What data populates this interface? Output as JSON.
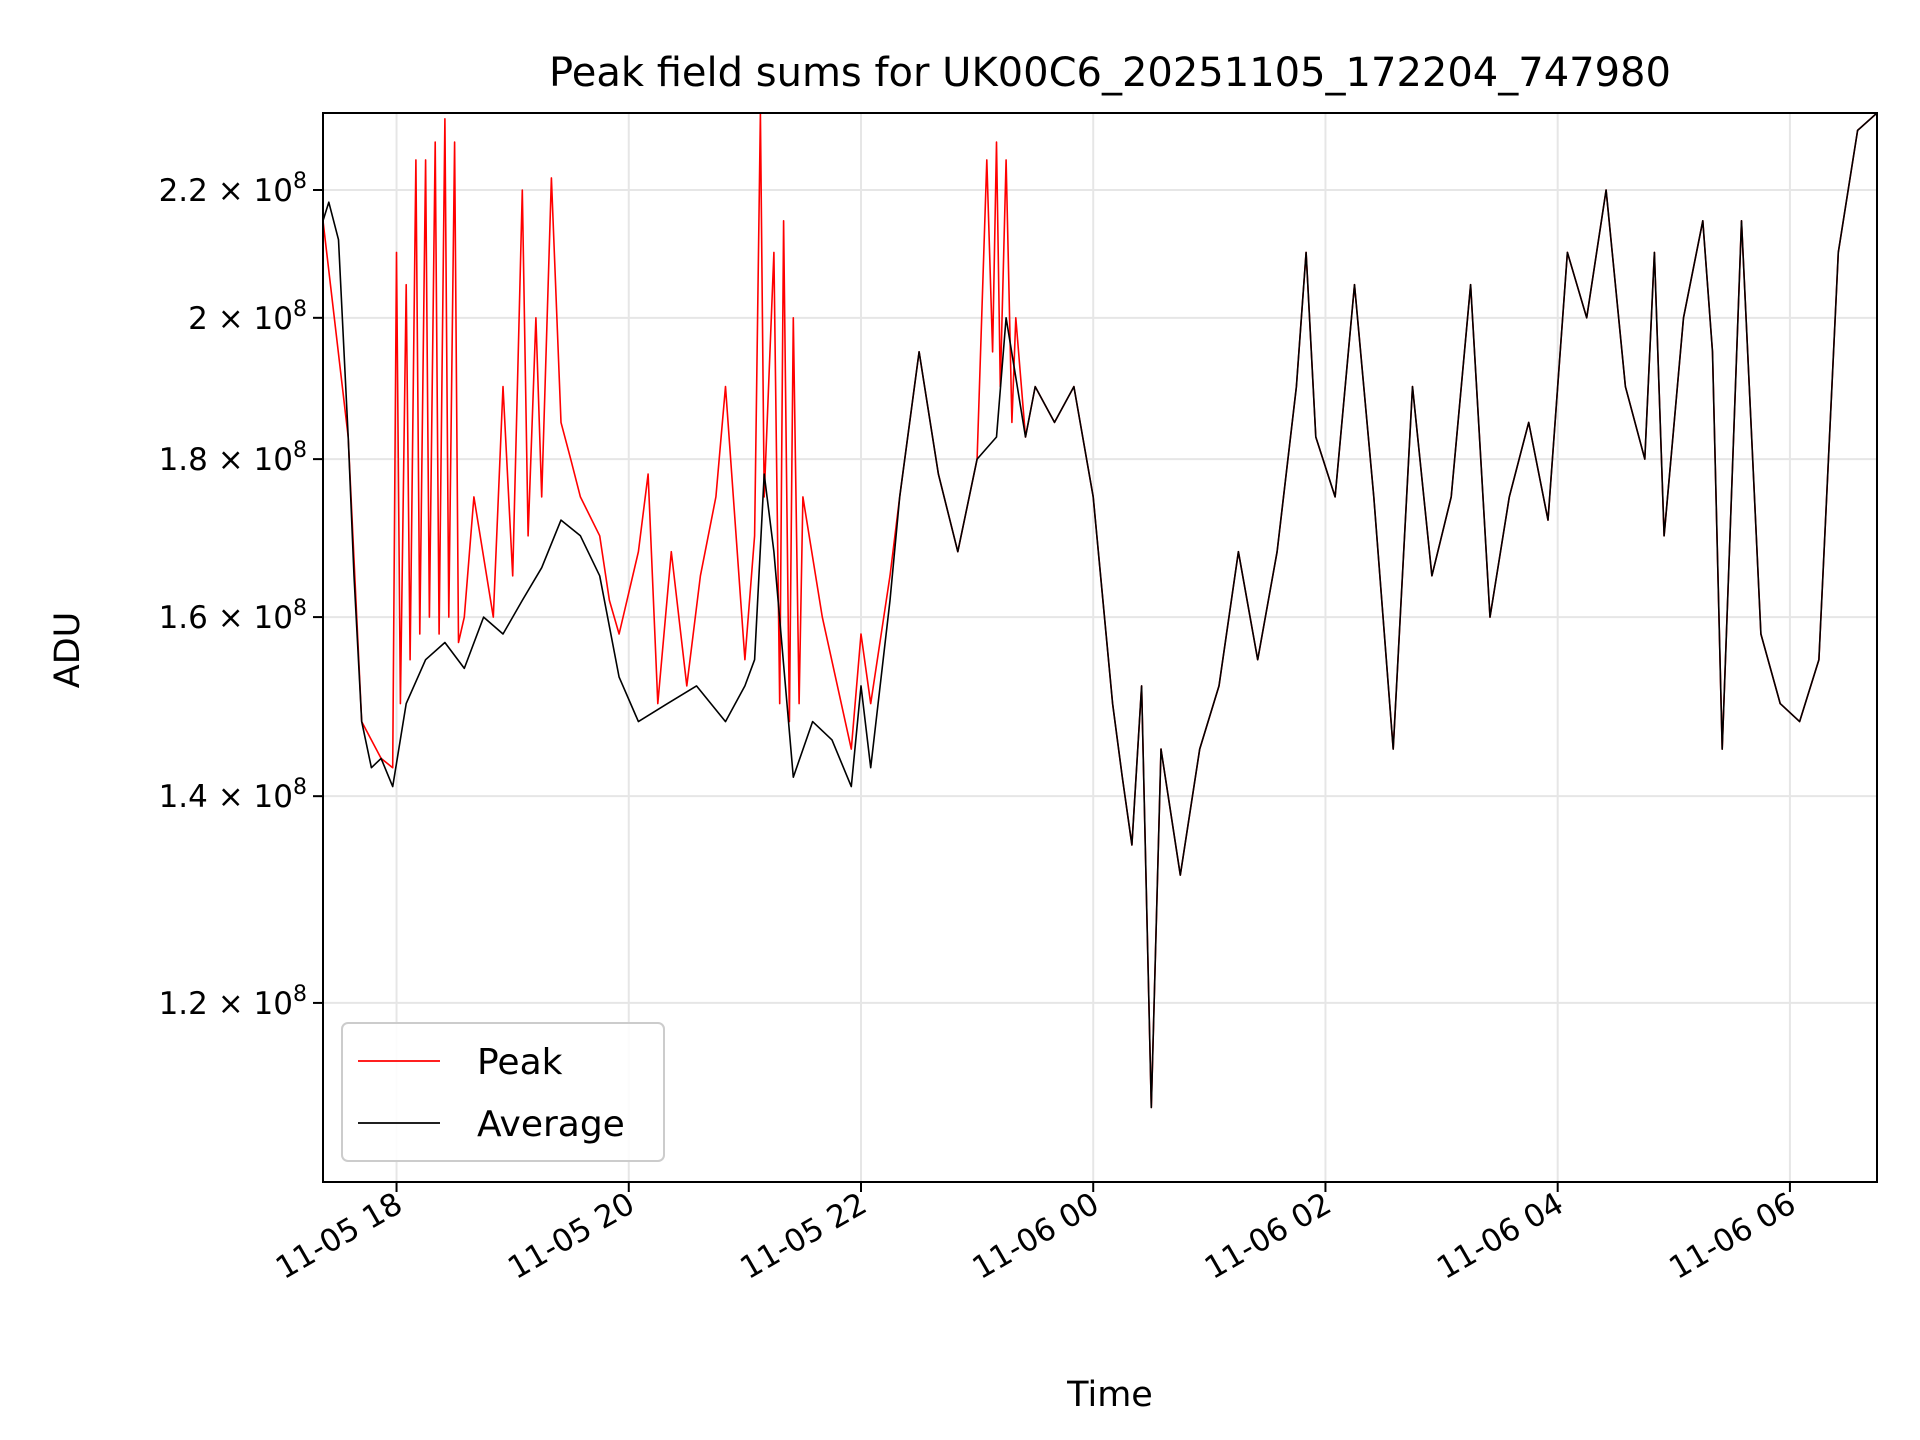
{
  "chart_data": {
    "type": "line",
    "title": "Peak field sums for UK00C6_20251105_172204_747980",
    "xlabel": "Time",
    "ylabel": "ADU",
    "y_scale": "log",
    "ylim": [
      105000000,
      233000000
    ],
    "xlim": [
      "2025-11-05 17:22",
      "2025-11-06 06:45"
    ],
    "grid": true,
    "legend_position": "lower-left",
    "colors": {
      "peak": "#ff0000",
      "average": "#000000"
    },
    "x_ticks": [
      {
        "t": "2025-11-05 18:00",
        "label": "11-05 18"
      },
      {
        "t": "2025-11-05 20:00",
        "label": "11-05 20"
      },
      {
        "t": "2025-11-05 22:00",
        "label": "11-05 22"
      },
      {
        "t": "2025-11-06 00:00",
        "label": "11-06 00"
      },
      {
        "t": "2025-11-06 02:00",
        "label": "11-06 02"
      },
      {
        "t": "2025-11-06 04:00",
        "label": "11-06 04"
      },
      {
        "t": "2025-11-06 06:00",
        "label": "11-06 06"
      }
    ],
    "y_ticks": [
      {
        "v": 120000000,
        "mant": "1.2",
        "exp": "8"
      },
      {
        "v": 140000000,
        "mant": "1.4",
        "exp": "8"
      },
      {
        "v": 160000000,
        "mant": "1.6",
        "exp": "8"
      },
      {
        "v": 180000000,
        "mant": "1.8",
        "exp": "8"
      },
      {
        "v": 200000000,
        "mant": "2",
        "exp": "8"
      },
      {
        "v": 220000000,
        "mant": "2.2",
        "exp": "8"
      }
    ],
    "series": [
      {
        "name": "Average",
        "x": [
          "2025-11-05 17:22",
          "2025-11-05 17:25",
          "2025-11-05 17:30",
          "2025-11-05 17:35",
          "2025-11-05 17:38",
          "2025-11-05 17:42",
          "2025-11-05 17:47",
          "2025-11-05 17:52",
          "2025-11-05 17:58",
          "2025-11-05 18:05",
          "2025-11-05 18:15",
          "2025-11-05 18:25",
          "2025-11-05 18:35",
          "2025-11-05 18:45",
          "2025-11-05 18:55",
          "2025-11-05 19:05",
          "2025-11-05 19:15",
          "2025-11-05 19:25",
          "2025-11-05 19:35",
          "2025-11-05 19:45",
          "2025-11-05 19:55",
          "2025-11-05 20:05",
          "2025-11-05 20:20",
          "2025-11-05 20:35",
          "2025-11-05 20:50",
          "2025-11-05 21:00",
          "2025-11-05 21:05",
          "2025-11-05 21:10",
          "2025-11-05 21:15",
          "2025-11-05 21:25",
          "2025-11-05 21:35",
          "2025-11-05 21:45",
          "2025-11-05 21:55",
          "2025-11-05 22:00",
          "2025-11-05 22:05",
          "2025-11-05 22:15",
          "2025-11-05 22:20",
          "2025-11-05 22:30",
          "2025-11-05 22:40",
          "2025-11-05 22:50",
          "2025-11-05 23:00",
          "2025-11-05 23:10",
          "2025-11-05 23:15",
          "2025-11-05 23:25",
          "2025-11-05 23:30",
          "2025-11-05 23:40",
          "2025-11-05 23:50",
          "2025-11-06 00:00",
          "2025-11-06 00:10",
          "2025-11-06 00:15",
          "2025-11-06 00:20",
          "2025-11-06 00:25",
          "2025-11-06 00:30",
          "2025-11-06 00:35",
          "2025-11-06 00:45",
          "2025-11-06 00:55",
          "2025-11-06 01:05",
          "2025-11-06 01:15",
          "2025-11-06 01:25",
          "2025-11-06 01:35",
          "2025-11-06 01:45",
          "2025-11-06 01:50",
          "2025-11-06 01:55",
          "2025-11-06 02:05",
          "2025-11-06 02:15",
          "2025-11-06 02:25",
          "2025-11-06 02:35",
          "2025-11-06 02:45",
          "2025-11-06 02:55",
          "2025-11-06 03:05",
          "2025-11-06 03:15",
          "2025-11-06 03:25",
          "2025-11-06 03:35",
          "2025-11-06 03:45",
          "2025-11-06 03:55",
          "2025-11-06 04:05",
          "2025-11-06 04:15",
          "2025-11-06 04:25",
          "2025-11-06 04:35",
          "2025-11-06 04:45",
          "2025-11-06 04:50",
          "2025-11-06 04:55",
          "2025-11-06 05:05",
          "2025-11-06 05:15",
          "2025-11-06 05:20",
          "2025-11-06 05:25",
          "2025-11-06 05:35",
          "2025-11-06 05:45",
          "2025-11-06 05:55",
          "2025-11-06 06:05",
          "2025-11-06 06:15",
          "2025-11-06 06:25",
          "2025-11-06 06:35",
          "2025-11-06 06:45"
        ],
        "values": [
          215000000,
          218000000,
          212000000,
          183000000,
          165000000,
          148000000,
          143000000,
          144000000,
          141000000,
          150000000,
          155000000,
          157000000,
          154000000,
          160000000,
          158000000,
          162000000,
          166000000,
          172000000,
          170000000,
          165000000,
          153000000,
          148000000,
          150000000,
          152000000,
          148000000,
          152000000,
          155000000,
          178000000,
          168000000,
          142000000,
          148000000,
          146000000,
          141000000,
          152000000,
          143000000,
          162000000,
          175000000,
          195000000,
          178000000,
          168000000,
          180000000,
          183000000,
          200000000,
          183000000,
          190000000,
          185000000,
          190000000,
          175000000,
          150000000,
          142000000,
          135000000,
          152000000,
          111000000,
          145000000,
          132000000,
          145000000,
          152000000,
          168000000,
          155000000,
          168000000,
          190000000,
          210000000,
          183000000,
          175000000,
          205000000,
          175000000,
          145000000,
          190000000,
          165000000,
          175000000,
          205000000,
          160000000,
          175000000,
          185000000,
          172000000,
          210000000,
          200000000,
          220000000,
          190000000,
          180000000,
          210000000,
          170000000,
          200000000,
          215000000,
          195000000,
          145000000,
          215000000,
          158000000,
          150000000,
          148000000,
          155000000,
          210000000,
          230000000,
          233000000
        ]
      },
      {
        "name": "Peak",
        "x": [
          "2025-11-05 17:22",
          "2025-11-05 17:35",
          "2025-11-05 17:42",
          "2025-11-05 17:52",
          "2025-11-05 17:58",
          "2025-11-05 18:00",
          "2025-11-05 18:02",
          "2025-11-05 18:05",
          "2025-11-05 18:07",
          "2025-11-05 18:10",
          "2025-11-05 18:12",
          "2025-11-05 18:15",
          "2025-11-05 18:17",
          "2025-11-05 18:20",
          "2025-11-05 18:22",
          "2025-11-05 18:25",
          "2025-11-05 18:27",
          "2025-11-05 18:30",
          "2025-11-05 18:32",
          "2025-11-05 18:35",
          "2025-11-05 18:40",
          "2025-11-05 18:50",
          "2025-11-05 18:55",
          "2025-11-05 19:00",
          "2025-11-05 19:05",
          "2025-11-05 19:08",
          "2025-11-05 19:12",
          "2025-11-05 19:15",
          "2025-11-05 19:20",
          "2025-11-05 19:25",
          "2025-11-05 19:30",
          "2025-11-05 19:35",
          "2025-11-05 19:45",
          "2025-11-05 19:50",
          "2025-11-05 19:55",
          "2025-11-05 20:05",
          "2025-11-05 20:10",
          "2025-11-05 20:15",
          "2025-11-05 20:22",
          "2025-11-05 20:30",
          "2025-11-05 20:37",
          "2025-11-05 20:45",
          "2025-11-05 20:50",
          "2025-11-05 21:00",
          "2025-11-05 21:05",
          "2025-11-05 21:08",
          "2025-11-05 21:10",
          "2025-11-05 21:15",
          "2025-11-05 21:18",
          "2025-11-05 21:20",
          "2025-11-05 21:23",
          "2025-11-05 21:25",
          "2025-11-05 21:28",
          "2025-11-05 21:30",
          "2025-11-05 21:40",
          "2025-11-05 21:55",
          "2025-11-05 22:00",
          "2025-11-05 22:05",
          "2025-11-05 22:15",
          "2025-11-05 22:20",
          "2025-11-05 22:30",
          "2025-11-05 22:40",
          "2025-11-05 22:50",
          "2025-11-05 23:00",
          "2025-11-05 23:05",
          "2025-11-05 23:08",
          "2025-11-05 23:10",
          "2025-11-05 23:12",
          "2025-11-05 23:15",
          "2025-11-05 23:18",
          "2025-11-05 23:20",
          "2025-11-05 23:25",
          "2025-11-05 23:30",
          "2025-11-05 23:40",
          "2025-11-05 23:50",
          "2025-11-06 00:00",
          "2025-11-06 00:10",
          "2025-11-06 00:15",
          "2025-11-06 00:20",
          "2025-11-06 00:25",
          "2025-11-06 00:30",
          "2025-11-06 00:35",
          "2025-11-06 00:45",
          "2025-11-06 00:55",
          "2025-11-06 01:05",
          "2025-11-06 01:15",
          "2025-11-06 01:25",
          "2025-11-06 01:35",
          "2025-11-06 01:45",
          "2025-11-06 01:50",
          "2025-11-06 01:55",
          "2025-11-06 02:05",
          "2025-11-06 02:15",
          "2025-11-06 02:25",
          "2025-11-06 02:35",
          "2025-11-06 02:45",
          "2025-11-06 02:55",
          "2025-11-06 03:05",
          "2025-11-06 03:15",
          "2025-11-06 03:25",
          "2025-11-06 03:35",
          "2025-11-06 03:45",
          "2025-11-06 03:55",
          "2025-11-06 04:05",
          "2025-11-06 04:15",
          "2025-11-06 04:25",
          "2025-11-06 04:35",
          "2025-11-06 04:45",
          "2025-11-06 04:50",
          "2025-11-06 04:55",
          "2025-11-06 05:05",
          "2025-11-06 05:15",
          "2025-11-06 05:20",
          "2025-11-06 05:25",
          "2025-11-06 05:35",
          "2025-11-06 05:45",
          "2025-11-06 05:55",
          "2025-11-06 06:05",
          "2025-11-06 06:15",
          "2025-11-06 06:25",
          "2025-11-06 06:35",
          "2025-11-06 06:45"
        ],
        "values": [
          215000000,
          183000000,
          148000000,
          144000000,
          143000000,
          210000000,
          150000000,
          205000000,
          155000000,
          225000000,
          158000000,
          225000000,
          160000000,
          228000000,
          158000000,
          232000000,
          160000000,
          228000000,
          157000000,
          160000000,
          175000000,
          160000000,
          190000000,
          165000000,
          220000000,
          170000000,
          200000000,
          175000000,
          222000000,
          185000000,
          180000000,
          175000000,
          170000000,
          162000000,
          158000000,
          168000000,
          178000000,
          150000000,
          168000000,
          152000000,
          165000000,
          175000000,
          190000000,
          155000000,
          170000000,
          233000000,
          175000000,
          210000000,
          150000000,
          215000000,
          148000000,
          200000000,
          150000000,
          175000000,
          160000000,
          145000000,
          158000000,
          150000000,
          165000000,
          175000000,
          195000000,
          178000000,
          168000000,
          180000000,
          225000000,
          195000000,
          228000000,
          190000000,
          225000000,
          185000000,
          200000000,
          183000000,
          190000000,
          185000000,
          190000000,
          175000000,
          150000000,
          142000000,
          135000000,
          152000000,
          111000000,
          145000000,
          132000000,
          145000000,
          152000000,
          168000000,
          155000000,
          168000000,
          190000000,
          210000000,
          183000000,
          175000000,
          205000000,
          175000000,
          145000000,
          190000000,
          165000000,
          175000000,
          205000000,
          160000000,
          175000000,
          185000000,
          172000000,
          210000000,
          200000000,
          220000000,
          190000000,
          180000000,
          210000000,
          170000000,
          200000000,
          215000000,
          195000000,
          145000000,
          215000000,
          158000000,
          150000000,
          148000000,
          155000000,
          210000000,
          230000000,
          233000000
        ]
      }
    ],
    "legend": [
      {
        "label": "Peak",
        "color": "#ff0000"
      },
      {
        "label": "Average",
        "color": "#000000"
      }
    ]
  }
}
